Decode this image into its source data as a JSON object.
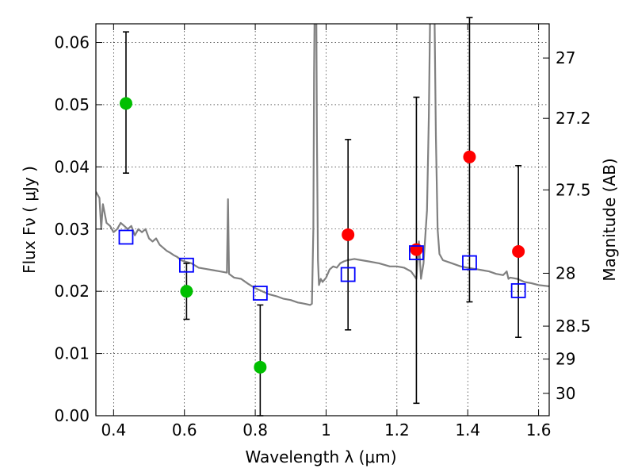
{
  "chart_data": {
    "type": "scatter",
    "xlabel": "Wavelength  λ (μm)",
    "ylabel": "Flux  Fν  ( μJy )",
    "y2label": "Magnitude (AB)",
    "xlim": [
      0.35,
      1.63
    ],
    "ylim": [
      0.0,
      0.063
    ],
    "grid": true,
    "x_ticks": [
      0.4,
      0.6,
      0.8,
      1.0,
      1.2,
      1.4,
      1.6
    ],
    "x_tick_labels": [
      "0.4",
      "0.6",
      "0.8",
      "1",
      "1.2",
      "1.4",
      "1.6"
    ],
    "y_ticks": [
      0.0,
      0.01,
      0.02,
      0.03,
      0.04,
      0.05,
      0.06
    ],
    "y_tick_labels": [
      "0.00",
      "0.01",
      "0.02",
      "0.03",
      "0.04",
      "0.05",
      "0.06"
    ],
    "y2_ticks": [
      {
        "label": "27",
        "flux": 0.0575
      },
      {
        "label": "27.2",
        "flux": 0.0478
      },
      {
        "label": "27.5",
        "flux": 0.0363
      },
      {
        "label": "28",
        "flux": 0.0229
      },
      {
        "label": "28.5",
        "flux": 0.0144
      },
      {
        "label": "29",
        "flux": 0.0091
      },
      {
        "label": "30",
        "flux": 0.0036
      }
    ],
    "colors": {
      "green": "#00bf00",
      "red": "#ff0000",
      "blue": "#0000ff",
      "spectrum": "#808080"
    },
    "series": [
      {
        "color": "green",
        "marker": "circle",
        "points": [
          {
            "x": 0.435,
            "y": 0.0502,
            "err_low": 0.039,
            "err_high": 0.0617
          },
          {
            "x": 0.606,
            "y": 0.02,
            "err_low": 0.0155,
            "err_high": 0.0245
          },
          {
            "x": 0.814,
            "y": 0.0078,
            "err_low": 0.0,
            "err_high": 0.0178
          }
        ]
      },
      {
        "color": "red",
        "marker": "circle",
        "points": [
          {
            "x": 1.062,
            "y": 0.0291,
            "err_low": 0.0138,
            "err_high": 0.0444
          },
          {
            "x": 1.255,
            "y": 0.0267,
            "err_low": 0.002,
            "err_high": 0.0512
          },
          {
            "x": 1.405,
            "y": 0.0416,
            "err_low": 0.0183,
            "err_high": 0.064
          },
          {
            "x": 1.543,
            "y": 0.0264,
            "err_low": 0.0126,
            "err_high": 0.0402
          }
        ]
      },
      {
        "color": "blue",
        "marker": "open-square",
        "points": [
          {
            "x": 0.435,
            "y": 0.0287
          },
          {
            "x": 0.606,
            "y": 0.0242
          },
          {
            "x": 0.814,
            "y": 0.0197
          },
          {
            "x": 1.062,
            "y": 0.0227
          },
          {
            "x": 1.255,
            "y": 0.0262
          },
          {
            "x": 1.405,
            "y": 0.0246
          },
          {
            "x": 1.543,
            "y": 0.0201
          }
        ]
      }
    ],
    "spectrum": {
      "color": "spectrum",
      "points": [
        [
          0.35,
          0.036
        ],
        [
          0.36,
          0.035
        ],
        [
          0.365,
          0.03
        ],
        [
          0.37,
          0.034
        ],
        [
          0.38,
          0.031
        ],
        [
          0.39,
          0.0305
        ],
        [
          0.4,
          0.0295
        ],
        [
          0.41,
          0.03
        ],
        [
          0.42,
          0.031
        ],
        [
          0.43,
          0.0305
        ],
        [
          0.44,
          0.03
        ],
        [
          0.45,
          0.0305
        ],
        [
          0.46,
          0.029
        ],
        [
          0.47,
          0.03
        ],
        [
          0.48,
          0.0295
        ],
        [
          0.49,
          0.03
        ],
        [
          0.5,
          0.0285
        ],
        [
          0.51,
          0.028
        ],
        [
          0.52,
          0.0285
        ],
        [
          0.53,
          0.0275
        ],
        [
          0.54,
          0.027
        ],
        [
          0.55,
          0.0265
        ],
        [
          0.56,
          0.0262
        ],
        [
          0.57,
          0.0258
        ],
        [
          0.58,
          0.0255
        ],
        [
          0.59,
          0.025
        ],
        [
          0.6,
          0.0248
        ],
        [
          0.62,
          0.0245
        ],
        [
          0.64,
          0.0238
        ],
        [
          0.66,
          0.0236
        ],
        [
          0.68,
          0.0234
        ],
        [
          0.7,
          0.0232
        ],
        [
          0.72,
          0.023
        ],
        [
          0.723,
          0.0348
        ],
        [
          0.726,
          0.0228
        ],
        [
          0.74,
          0.0222
        ],
        [
          0.76,
          0.022
        ],
        [
          0.78,
          0.0212
        ],
        [
          0.8,
          0.0205
        ],
        [
          0.82,
          0.02
        ],
        [
          0.84,
          0.0195
        ],
        [
          0.86,
          0.0192
        ],
        [
          0.88,
          0.0188
        ],
        [
          0.9,
          0.0186
        ],
        [
          0.92,
          0.0182
        ],
        [
          0.94,
          0.018
        ],
        [
          0.955,
          0.0178
        ],
        [
          0.96,
          0.018
        ],
        [
          0.964,
          0.03
        ],
        [
          0.966,
          0.055
        ],
        [
          0.968,
          0.068
        ],
        [
          0.972,
          0.068
        ],
        [
          0.974,
          0.045
        ],
        [
          0.977,
          0.025
        ],
        [
          0.98,
          0.021
        ],
        [
          0.985,
          0.022
        ],
        [
          0.99,
          0.0215
        ],
        [
          1.0,
          0.0222
        ],
        [
          1.01,
          0.0235
        ],
        [
          1.02,
          0.024
        ],
        [
          1.03,
          0.0238
        ],
        [
          1.04,
          0.0245
        ],
        [
          1.05,
          0.0248
        ],
        [
          1.06,
          0.025
        ],
        [
          1.08,
          0.0252
        ],
        [
          1.1,
          0.025
        ],
        [
          1.12,
          0.0248
        ],
        [
          1.15,
          0.0245
        ],
        [
          1.18,
          0.024
        ],
        [
          1.2,
          0.024
        ],
        [
          1.22,
          0.0238
        ],
        [
          1.24,
          0.0232
        ],
        [
          1.255,
          0.022
        ],
        [
          1.262,
          0.028
        ],
        [
          1.268,
          0.022
        ],
        [
          1.275,
          0.0245
        ],
        [
          1.285,
          0.033
        ],
        [
          1.29,
          0.048
        ],
        [
          1.295,
          0.07
        ],
        [
          1.305,
          0.07
        ],
        [
          1.31,
          0.045
        ],
        [
          1.315,
          0.03
        ],
        [
          1.32,
          0.026
        ],
        [
          1.33,
          0.025
        ],
        [
          1.35,
          0.0246
        ],
        [
          1.38,
          0.024
        ],
        [
          1.4,
          0.0238
        ],
        [
          1.42,
          0.0236
        ],
        [
          1.44,
          0.0234
        ],
        [
          1.46,
          0.0232
        ],
        [
          1.48,
          0.0228
        ],
        [
          1.5,
          0.0226
        ],
        [
          1.51,
          0.0232
        ],
        [
          1.515,
          0.022
        ],
        [
          1.52,
          0.0222
        ],
        [
          1.54,
          0.022
        ],
        [
          1.56,
          0.0215
        ],
        [
          1.58,
          0.0213
        ],
        [
          1.6,
          0.021
        ],
        [
          1.63,
          0.0208
        ]
      ]
    }
  }
}
